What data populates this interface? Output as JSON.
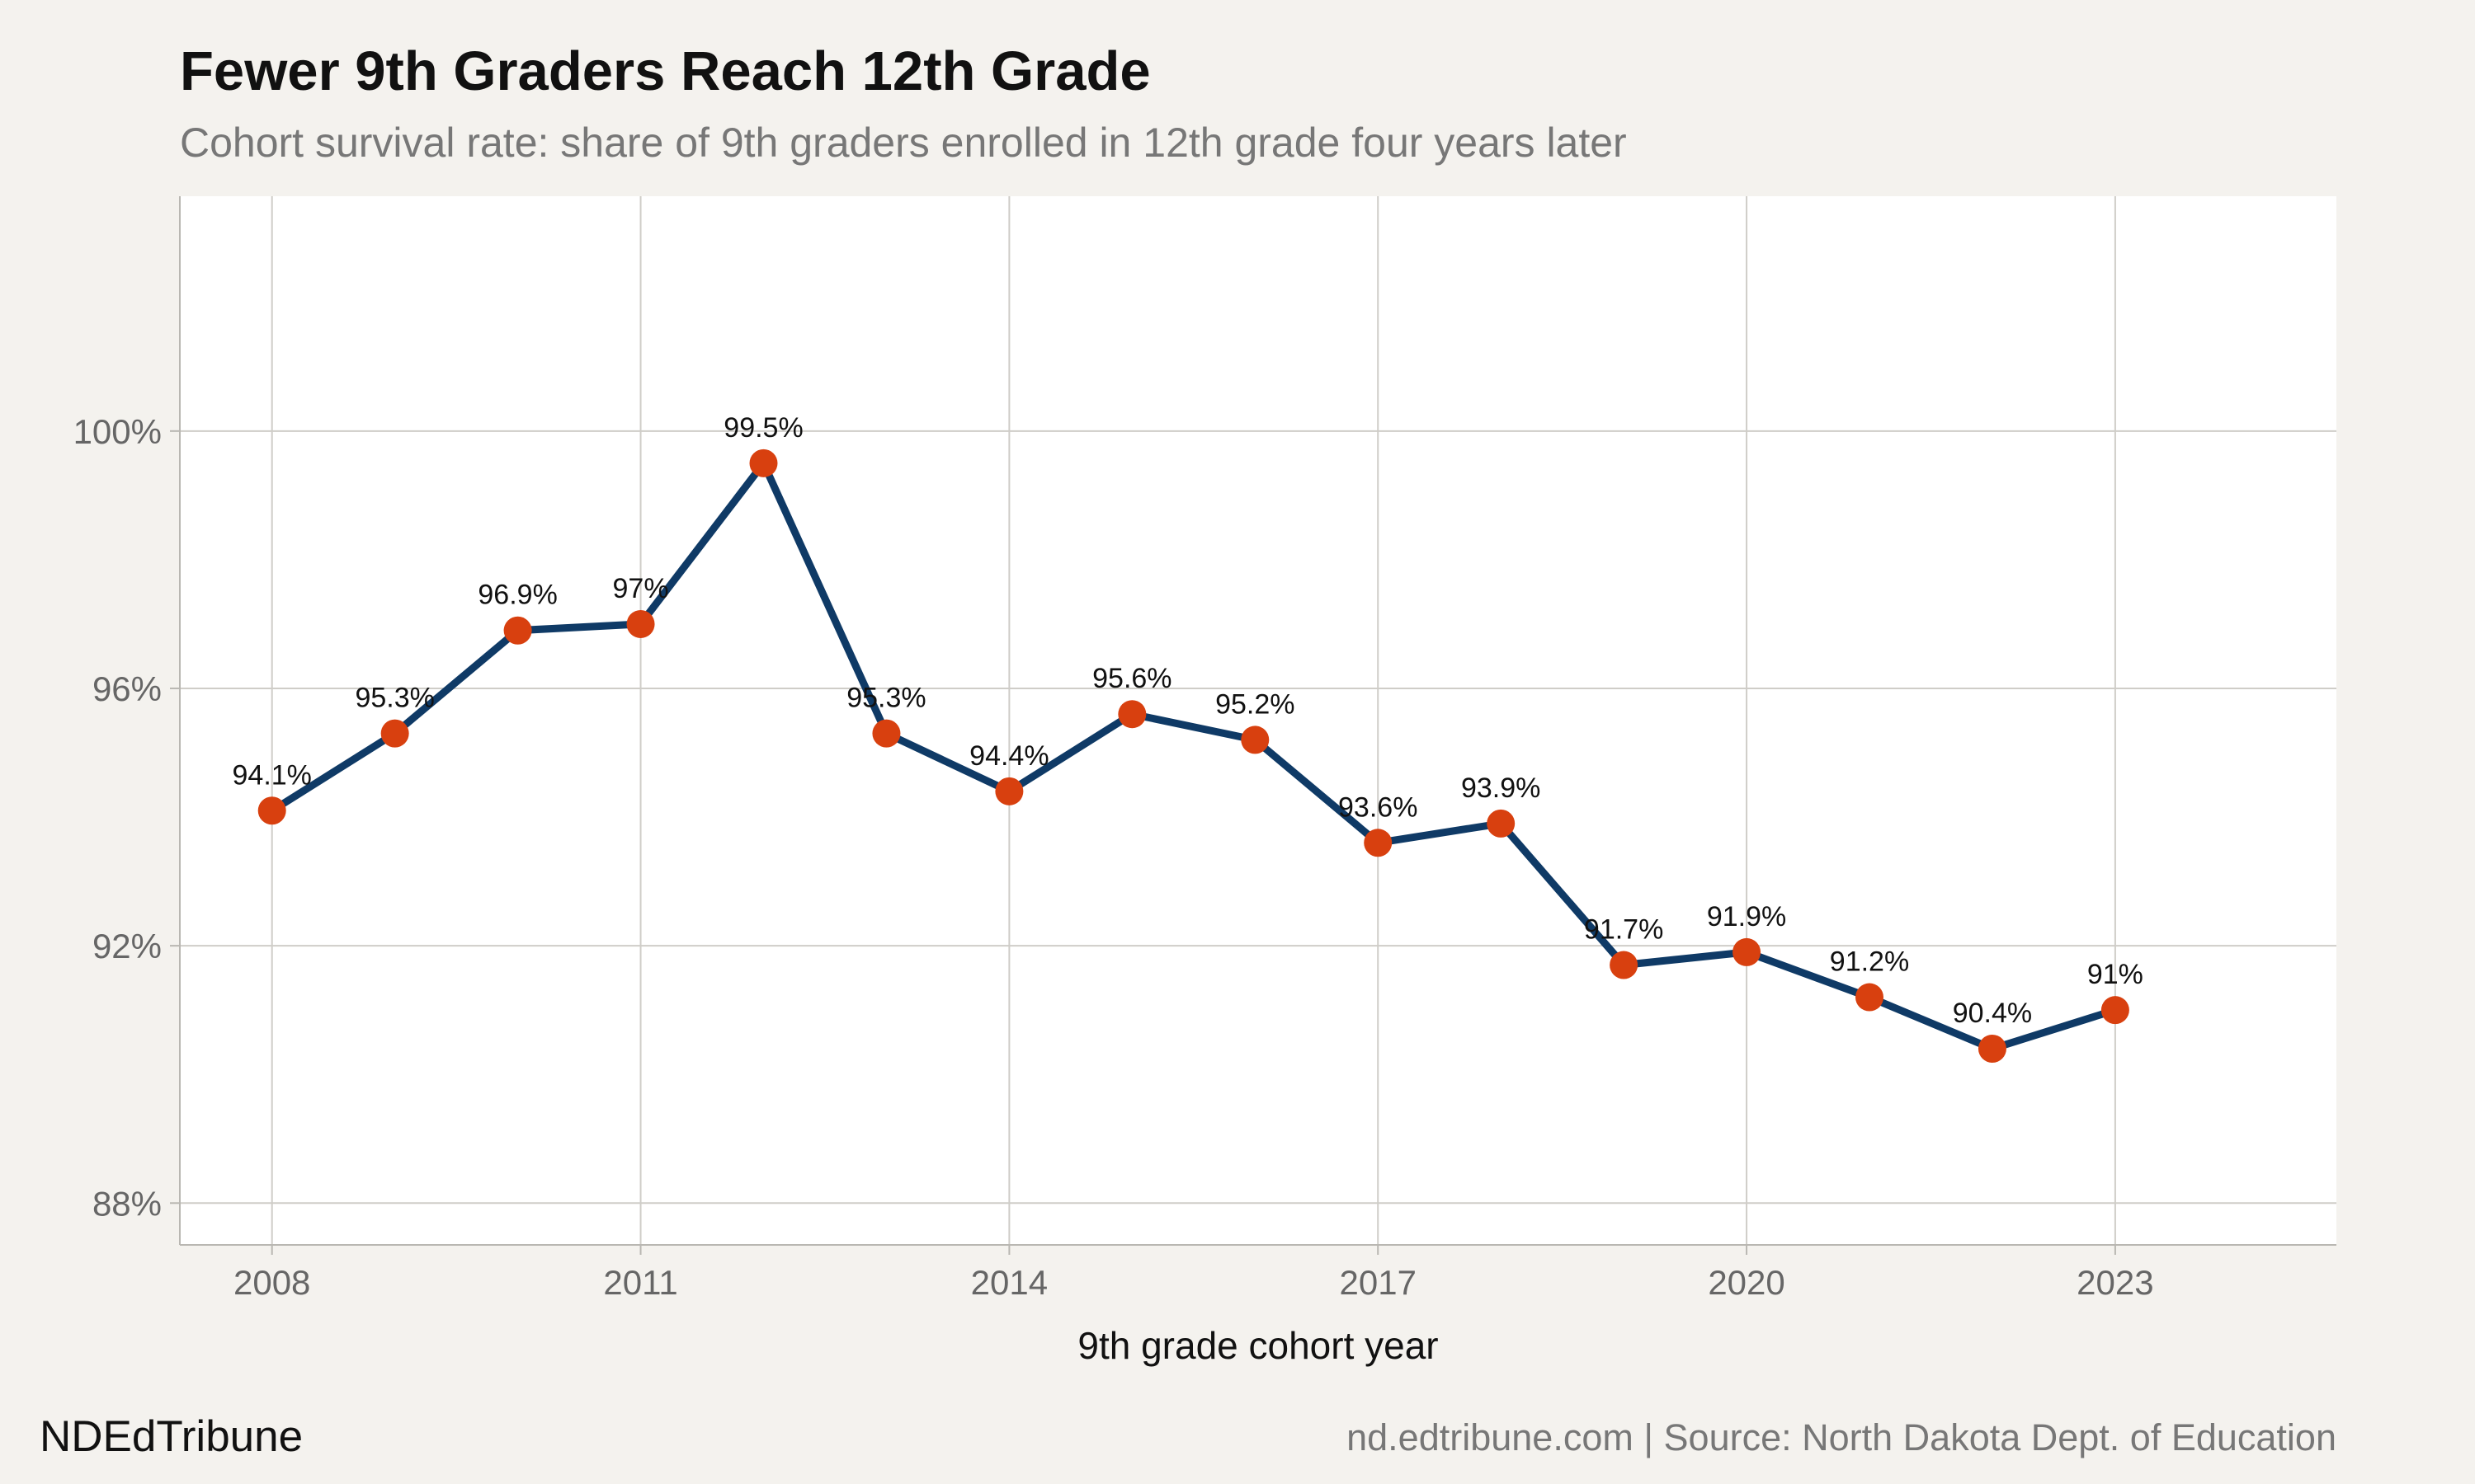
{
  "chart_data": {
    "type": "line",
    "title": "Fewer 9th Graders Reach 12th Grade",
    "subtitle": "Cohort survival rate: share of 9th graders enrolled in 12th grade four years later",
    "xlabel": "9th grade cohort year",
    "ylabel": "",
    "x": [
      2008,
      2009,
      2010,
      2011,
      2012,
      2013,
      2014,
      2015,
      2016,
      2017,
      2018,
      2019,
      2020,
      2021,
      2022,
      2023
    ],
    "series": [
      {
        "values": [
          94.1,
          95.3,
          96.9,
          97.0,
          99.5,
          95.3,
          94.4,
          95.6,
          95.2,
          93.6,
          93.9,
          91.7,
          91.9,
          91.2,
          90.4,
          91.0
        ],
        "labels": [
          "94.1%",
          "95.3%",
          "96.9%",
          "97%",
          "99.5%",
          "95.3%",
          "94.4%",
          "95.6%",
          "95.2%",
          "93.6%",
          "93.9%",
          "91.7%",
          "91.9%",
          "91.2%",
          "90.4%",
          "91%"
        ]
      }
    ],
    "xlim": [
      2007.25,
      2024.8
    ],
    "ylim": [
      87.35,
      103.65
    ],
    "x_ticks": [
      2008,
      2011,
      2014,
      2017,
      2020,
      2023
    ],
    "x_tick_labels": [
      "2008",
      "2011",
      "2014",
      "2017",
      "2020",
      "2023"
    ],
    "y_ticks": [
      88,
      92,
      96,
      100
    ],
    "y_tick_labels": [
      "88%",
      "92%",
      "96%",
      "100%"
    ],
    "grid": true,
    "legend": "none",
    "colors": {
      "line": "#0f3a66",
      "marker": "#d8400f",
      "panel": "#ffffff",
      "grid": "#cfcdc8",
      "background": "#f4f2ee"
    }
  },
  "footer": {
    "brand": "NDEdTribune",
    "caption": "nd.edtribune.com | Source: North Dakota Dept. of Education"
  }
}
